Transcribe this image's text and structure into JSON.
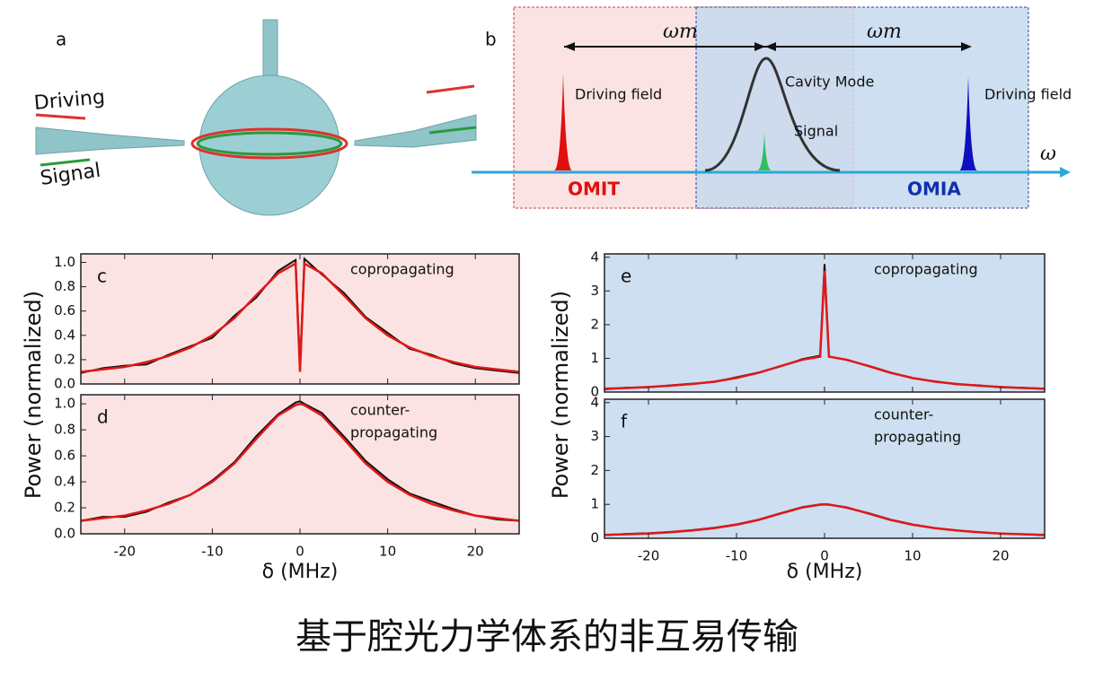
{
  "panel_a": {
    "label": "a",
    "driving": "Driving",
    "signal": "Signal"
  },
  "panel_b": {
    "label": "b",
    "omega_m_left": "ωm",
    "omega_m_right": "ωm",
    "driving_left": "Driving field",
    "driving_right": "Driving field",
    "cavity": "Cavity Mode",
    "signal": "Signal",
    "omit": "OMIT",
    "omia": "OMIA",
    "omega": "ω"
  },
  "y_label_left": "Power (normalized)",
  "y_label_right": "Power (normalized)",
  "x_label_left": "δ (MHz)",
  "x_label_right": "δ (MHz)",
  "caption": "基于腔光力学体系的非互易传输",
  "chart_data": [
    {
      "type": "line",
      "label": "c",
      "annotation": [
        "copropagating"
      ],
      "background": "#fbe3e3",
      "x": [
        -25,
        -22.5,
        -20,
        -17.5,
        -15,
        -12.5,
        -10,
        -7.5,
        -5,
        -2.5,
        -0.5,
        0,
        0.5,
        2.5,
        5,
        7.5,
        10,
        12.5,
        15,
        17.5,
        20,
        22.5,
        25
      ],
      "series": [
        {
          "color": "#111111",
          "values": [
            0.09,
            0.13,
            0.15,
            0.16,
            0.24,
            0.31,
            0.38,
            0.56,
            0.71,
            0.93,
            1.02,
            0.15,
            1.03,
            0.9,
            0.75,
            0.55,
            0.42,
            0.29,
            0.24,
            0.17,
            0.13,
            0.11,
            0.09
          ]
        },
        {
          "color": "#e01818",
          "values": [
            0.1,
            0.12,
            0.14,
            0.18,
            0.23,
            0.3,
            0.4,
            0.54,
            0.73,
            0.91,
            0.99,
            0.1,
            0.99,
            0.91,
            0.73,
            0.54,
            0.4,
            0.3,
            0.23,
            0.18,
            0.14,
            0.12,
            0.1
          ]
        }
      ],
      "xlim": [
        -25,
        25
      ],
      "xticks": [
        -20,
        -10,
        0,
        10,
        20
      ],
      "ylim": [
        0,
        1.07
      ],
      "yticks": [
        {
          "value": 0,
          "label": "0.0"
        },
        {
          "value": 0.2,
          "label": "0.2"
        },
        {
          "value": 0.4,
          "label": "0.4"
        },
        {
          "value": 0.6,
          "label": "0.6"
        },
        {
          "value": 0.8,
          "label": "0.8"
        },
        {
          "value": 1,
          "label": "1.0"
        }
      ]
    },
    {
      "type": "line",
      "label": "d",
      "annotation": [
        "counter-",
        "propagating"
      ],
      "background": "#fbe3e3",
      "x": [
        -25,
        -22.5,
        -20,
        -17.5,
        -15,
        -12.5,
        -10,
        -7.5,
        -5,
        -2.5,
        -0.5,
        0,
        0.5,
        2.5,
        5,
        7.5,
        10,
        12.5,
        15,
        17.5,
        20,
        22.5,
        25
      ],
      "series": [
        {
          "color": "#111111",
          "values": [
            0.1,
            0.13,
            0.13,
            0.17,
            0.24,
            0.3,
            0.41,
            0.55,
            0.75,
            0.92,
            1.01,
            1.02,
            1,
            0.93,
            0.75,
            0.56,
            0.42,
            0.31,
            0.25,
            0.19,
            0.14,
            0.11,
            0.1
          ]
        },
        {
          "color": "#e01818",
          "values": [
            0.1,
            0.12,
            0.14,
            0.18,
            0.23,
            0.3,
            0.4,
            0.54,
            0.73,
            0.91,
            0.99,
            1,
            0.99,
            0.91,
            0.73,
            0.54,
            0.4,
            0.3,
            0.23,
            0.18,
            0.14,
            0.12,
            0.1
          ]
        }
      ],
      "xlim": [
        -25,
        25
      ],
      "xticks": [
        -20,
        -10,
        0,
        10,
        20
      ],
      "ylim": [
        0,
        1.07
      ],
      "yticks": [
        {
          "value": 0,
          "label": "0.0"
        },
        {
          "value": 0.2,
          "label": "0.2"
        },
        {
          "value": 0.4,
          "label": "0.4"
        },
        {
          "value": 0.6,
          "label": "0.6"
        },
        {
          "value": 0.8,
          "label": "0.8"
        },
        {
          "value": 1,
          "label": "1.0"
        }
      ]
    },
    {
      "type": "line",
      "label": "e",
      "annotation": [
        "copropagating"
      ],
      "background": "#cddff0",
      "x": [
        -25,
        -22.5,
        -20,
        -17.5,
        -15,
        -12.5,
        -10,
        -7.5,
        -5,
        -2.5,
        -0.5,
        0,
        0.5,
        2.5,
        5,
        7.5,
        10,
        12.5,
        15,
        17.5,
        20,
        22.5,
        25
      ],
      "series": [
        {
          "color": "#111111",
          "values": [
            0.08,
            0.13,
            0.14,
            0.2,
            0.25,
            0.3,
            0.44,
            0.58,
            0.76,
            0.98,
            1.08,
            3.8,
            1.06,
            0.95,
            0.78,
            0.58,
            0.41,
            0.32,
            0.23,
            0.2,
            0.14,
            0.13,
            0.09
          ]
        },
        {
          "color": "#e01818",
          "values": [
            0.1,
            0.12,
            0.15,
            0.19,
            0.24,
            0.31,
            0.42,
            0.57,
            0.77,
            0.96,
            1.05,
            3.6,
            1.05,
            0.96,
            0.77,
            0.57,
            0.42,
            0.31,
            0.24,
            0.19,
            0.15,
            0.12,
            0.1
          ]
        }
      ],
      "xlim": [
        -25,
        25
      ],
      "xticks": [
        -20,
        -10,
        0,
        10,
        20
      ],
      "ylim": [
        0,
        4.1
      ],
      "yticks": [
        0,
        1,
        2,
        3,
        4
      ]
    },
    {
      "type": "line",
      "label": "f",
      "annotation": [
        "counter-",
        "propagating"
      ],
      "background": "#cddff0",
      "x": [
        -25,
        -22.5,
        -20,
        -17.5,
        -15,
        -12.5,
        -10,
        -7.5,
        -5,
        -2.5,
        -0.5,
        0,
        0.5,
        2.5,
        5,
        7.5,
        10,
        12.5,
        15,
        17.5,
        20,
        22.5,
        25
      ],
      "series": [
        {
          "color": "#111111",
          "values": [
            0.09,
            0.13,
            0.15,
            0.19,
            0.24,
            0.31,
            0.41,
            0.55,
            0.74,
            0.92,
            1,
            1.01,
            1,
            0.9,
            0.74,
            0.55,
            0.41,
            0.3,
            0.23,
            0.18,
            0.14,
            0.12,
            0.09
          ]
        },
        {
          "color": "#e01818",
          "values": [
            0.1,
            0.12,
            0.14,
            0.18,
            0.23,
            0.3,
            0.4,
            0.54,
            0.73,
            0.91,
            0.99,
            1,
            0.99,
            0.91,
            0.73,
            0.54,
            0.4,
            0.3,
            0.23,
            0.18,
            0.14,
            0.12,
            0.1
          ]
        }
      ],
      "xlim": [
        -25,
        25
      ],
      "xticks": [
        -20,
        -10,
        0,
        10,
        20
      ],
      "ylim": [
        0,
        4.1
      ],
      "yticks": [
        0,
        1,
        2,
        3,
        4
      ]
    }
  ]
}
